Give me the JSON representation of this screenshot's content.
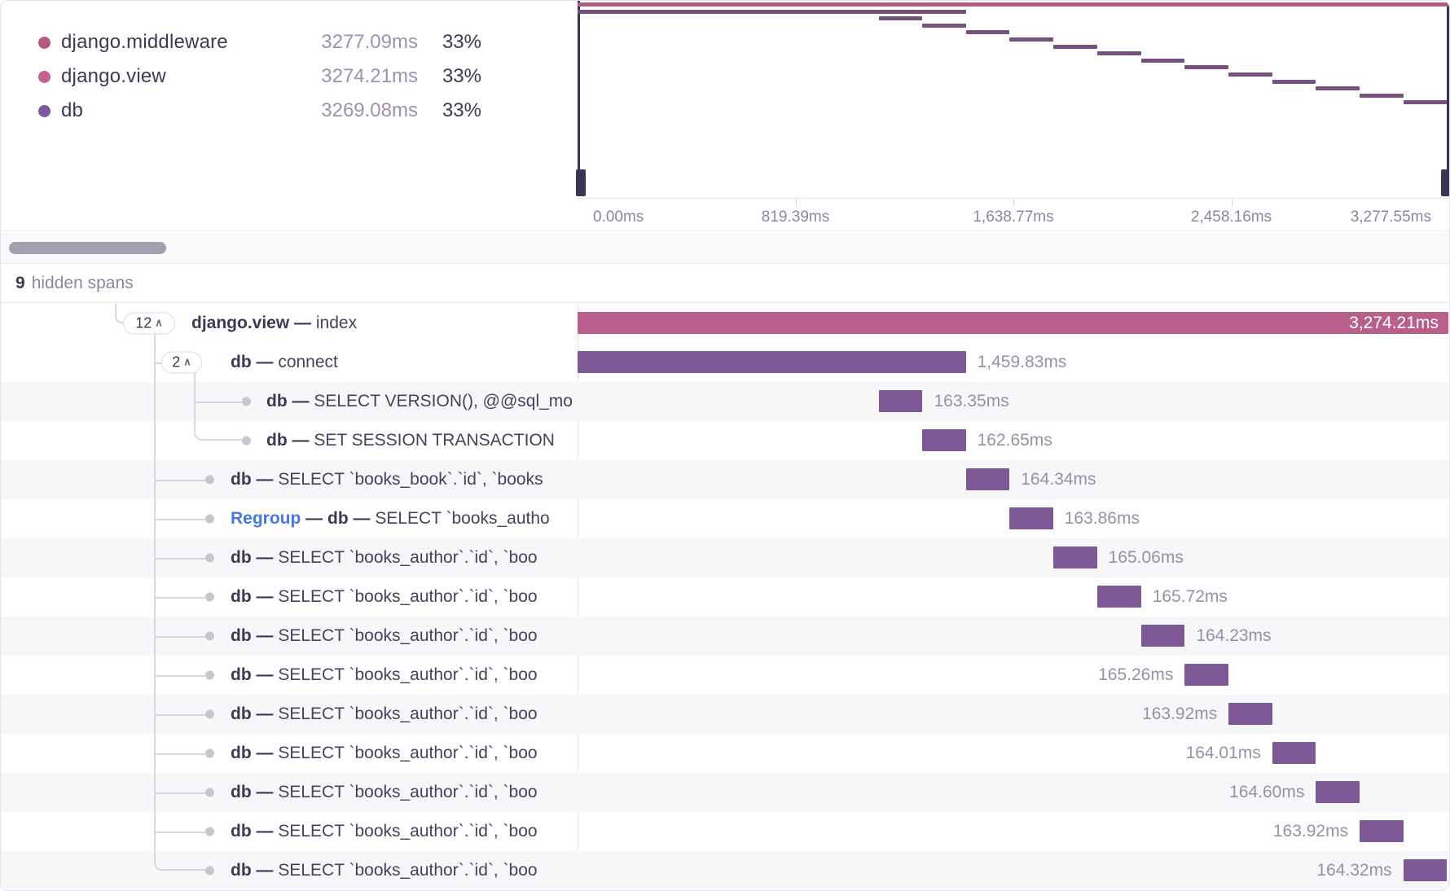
{
  "colors": {
    "pink_bar": "#b85f8b",
    "purple_bar": "#7e5795",
    "mini_pink": "#b25c86",
    "mini_purple": "#74517f",
    "dot_middleware": "#b25a80",
    "dot_view": "#c16290",
    "dot_db": "#7d589a"
  },
  "legend": {
    "items": [
      {
        "name": "django.middleware",
        "time": "3277.09ms",
        "pct": "33%",
        "dot": "dot_middleware"
      },
      {
        "name": "django.view",
        "time": "3274.21ms",
        "pct": "33%",
        "dot": "dot_view"
      },
      {
        "name": "db",
        "time": "3269.08ms",
        "pct": "33%",
        "dot": "dot_db"
      }
    ]
  },
  "minimap": {
    "total_ms": 3277.55,
    "axis_ticks": [
      "0.00ms",
      "819.39ms",
      "1,638.77ms",
      "2,458.16ms",
      "3,277.55ms"
    ]
  },
  "hidden_spans": {
    "count": "9",
    "label": "hidden spans"
  },
  "icons": {
    "collapse_caret": "∧"
  },
  "spans": [
    {
      "count": "12",
      "depth": 0,
      "color": "pink",
      "start_ms": 0,
      "duration_ms": 3274.21,
      "duration_label": "3,274.21ms",
      "label_side": "inside",
      "alt": false,
      "segments": [
        {
          "t": "django.view",
          "s": "op"
        },
        {
          "t": " — ",
          "s": "sep"
        },
        {
          "t": "index",
          "s": "detail"
        }
      ]
    },
    {
      "count": "2",
      "depth": 1,
      "color": "purple",
      "start_ms": 0,
      "duration_ms": 1459.83,
      "duration_label": "1,459.83ms",
      "label_side": "right",
      "alt": false,
      "segments": [
        {
          "t": "db",
          "s": "op"
        },
        {
          "t": " — ",
          "s": "sep"
        },
        {
          "t": "connect",
          "s": "detail"
        }
      ]
    },
    {
      "count": null,
      "depth": 2,
      "color": "purple",
      "start_ms": 1133.83,
      "duration_ms": 163.35,
      "duration_label": "163.35ms",
      "label_side": "right",
      "alt": true,
      "segments": [
        {
          "t": "db",
          "s": "op"
        },
        {
          "t": " — ",
          "s": "sep"
        },
        {
          "t": "SELECT VERSION(), @@sql_mo",
          "s": "detail"
        }
      ]
    },
    {
      "count": null,
      "depth": 2,
      "color": "purple",
      "start_ms": 1297.18,
      "duration_ms": 162.65,
      "duration_label": "162.65ms",
      "label_side": "right",
      "alt": false,
      "segments": [
        {
          "t": "db",
          "s": "op"
        },
        {
          "t": " — ",
          "s": "sep"
        },
        {
          "t": "SET SESSION TRANSACTION ",
          "s": "detail"
        }
      ]
    },
    {
      "count": null,
      "depth": 1,
      "color": "purple",
      "start_ms": 1459.83,
      "duration_ms": 164.34,
      "duration_label": "164.34ms",
      "label_side": "right",
      "alt": true,
      "segments": [
        {
          "t": "db",
          "s": "op"
        },
        {
          "t": " — ",
          "s": "sep"
        },
        {
          "t": "SELECT `books_book`.`id`, `books",
          "s": "detail"
        }
      ]
    },
    {
      "count": null,
      "depth": 1,
      "color": "purple",
      "start_ms": 1624.17,
      "duration_ms": 163.86,
      "duration_label": "163.86ms",
      "label_side": "right",
      "alt": false,
      "segments": [
        {
          "t": "Regroup",
          "s": "regroup"
        },
        {
          "t": " — ",
          "s": "sep"
        },
        {
          "t": "db",
          "s": "op"
        },
        {
          "t": " — ",
          "s": "sep"
        },
        {
          "t": "SELECT `books_autho",
          "s": "detail"
        }
      ]
    },
    {
      "count": null,
      "depth": 1,
      "color": "purple",
      "start_ms": 1788.03,
      "duration_ms": 165.06,
      "duration_label": "165.06ms",
      "label_side": "right",
      "alt": true,
      "segments": [
        {
          "t": "db",
          "s": "op"
        },
        {
          "t": " — ",
          "s": "sep"
        },
        {
          "t": "SELECT `books_author`.`id`, `boo",
          "s": "detail"
        }
      ]
    },
    {
      "count": null,
      "depth": 1,
      "color": "purple",
      "start_ms": 1953.09,
      "duration_ms": 165.72,
      "duration_label": "165.72ms",
      "label_side": "right",
      "alt": false,
      "segments": [
        {
          "t": "db",
          "s": "op"
        },
        {
          "t": " — ",
          "s": "sep"
        },
        {
          "t": "SELECT `books_author`.`id`, `boo",
          "s": "detail"
        }
      ]
    },
    {
      "count": null,
      "depth": 1,
      "color": "purple",
      "start_ms": 2118.81,
      "duration_ms": 164.23,
      "duration_label": "164.23ms",
      "label_side": "right",
      "alt": true,
      "segments": [
        {
          "t": "db",
          "s": "op"
        },
        {
          "t": " — ",
          "s": "sep"
        },
        {
          "t": "SELECT `books_author`.`id`, `boo",
          "s": "detail"
        }
      ]
    },
    {
      "count": null,
      "depth": 1,
      "color": "purple",
      "start_ms": 2283.04,
      "duration_ms": 165.26,
      "duration_label": "165.26ms",
      "label_side": "left",
      "alt": false,
      "segments": [
        {
          "t": "db",
          "s": "op"
        },
        {
          "t": " — ",
          "s": "sep"
        },
        {
          "t": "SELECT `books_author`.`id`, `boo",
          "s": "detail"
        }
      ]
    },
    {
      "count": null,
      "depth": 1,
      "color": "purple",
      "start_ms": 2448.3,
      "duration_ms": 163.92,
      "duration_label": "163.92ms",
      "label_side": "left",
      "alt": true,
      "segments": [
        {
          "t": "db",
          "s": "op"
        },
        {
          "t": " — ",
          "s": "sep"
        },
        {
          "t": "SELECT `books_author`.`id`, `boo",
          "s": "detail"
        }
      ]
    },
    {
      "count": null,
      "depth": 1,
      "color": "purple",
      "start_ms": 2612.22,
      "duration_ms": 164.01,
      "duration_label": "164.01ms",
      "label_side": "left",
      "alt": false,
      "segments": [
        {
          "t": "db",
          "s": "op"
        },
        {
          "t": " — ",
          "s": "sep"
        },
        {
          "t": "SELECT `books_author`.`id`, `boo",
          "s": "detail"
        }
      ]
    },
    {
      "count": null,
      "depth": 1,
      "color": "purple",
      "start_ms": 2776.23,
      "duration_ms": 164.6,
      "duration_label": "164.60ms",
      "label_side": "left",
      "alt": true,
      "segments": [
        {
          "t": "db",
          "s": "op"
        },
        {
          "t": " — ",
          "s": "sep"
        },
        {
          "t": "SELECT `books_author`.`id`, `boo",
          "s": "detail"
        }
      ]
    },
    {
      "count": null,
      "depth": 1,
      "color": "purple",
      "start_ms": 2940.83,
      "duration_ms": 163.92,
      "duration_label": "163.92ms",
      "label_side": "left",
      "alt": false,
      "segments": [
        {
          "t": "db",
          "s": "op"
        },
        {
          "t": " — ",
          "s": "sep"
        },
        {
          "t": "SELECT `books_author`.`id`, `boo",
          "s": "detail"
        }
      ]
    },
    {
      "count": null,
      "depth": 1,
      "color": "purple",
      "start_ms": 3104.75,
      "duration_ms": 164.32,
      "duration_label": "164.32ms",
      "label_side": "left",
      "alt": true,
      "segments": [
        {
          "t": "db",
          "s": "op"
        },
        {
          "t": " — ",
          "s": "sep"
        },
        {
          "t": "SELECT `books_author`.`id`, `boo",
          "s": "detail"
        }
      ]
    }
  ]
}
